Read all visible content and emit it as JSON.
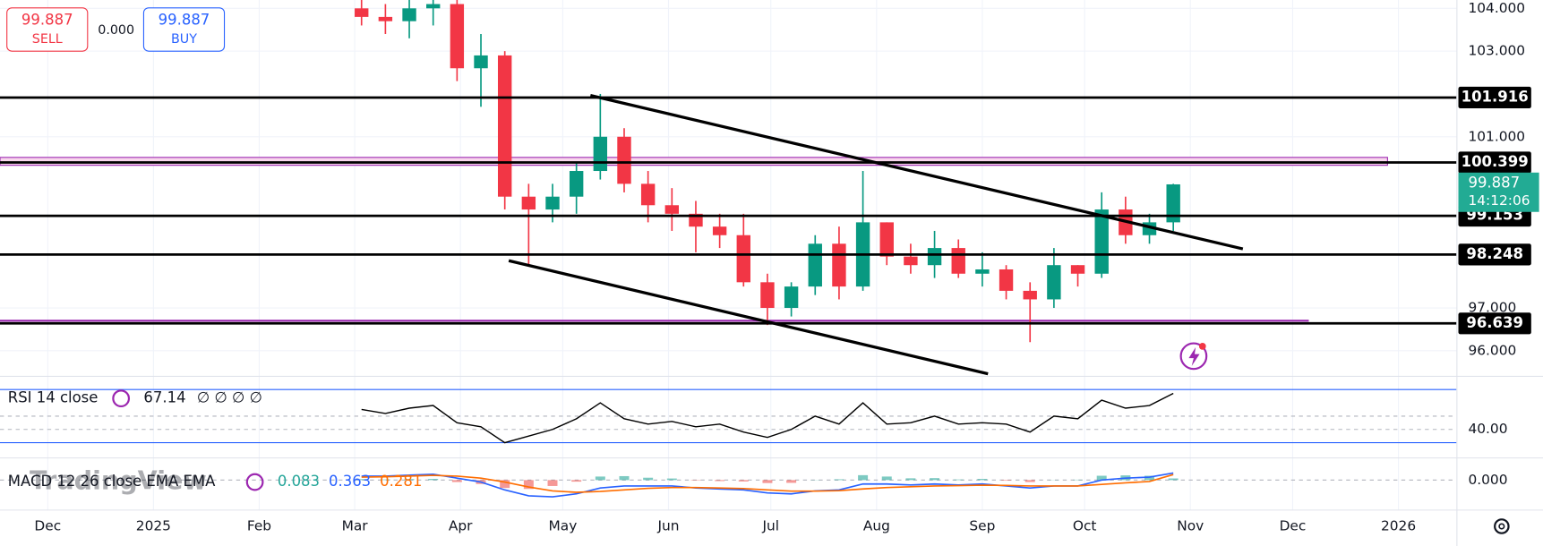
{
  "trade_panel": {
    "sell_price": "99.887",
    "sell_label": "SELL",
    "spread": "0.000",
    "buy_price": "99.887",
    "buy_label": "BUY"
  },
  "watermark": "TradingView",
  "chart_data": [
    {
      "type": "candlestick",
      "up_color": "#089981",
      "down_color": "#f23645",
      "x": [
        "2025-03-03",
        "2025-03-10",
        "2025-03-17",
        "2025-03-24",
        "2025-03-31",
        "2025-04-07",
        "2025-04-14",
        "2025-04-21",
        "2025-04-28",
        "2025-05-05",
        "2025-05-12",
        "2025-05-19",
        "2025-05-26",
        "2025-06-02",
        "2025-06-09",
        "2025-06-16",
        "2025-06-23",
        "2025-06-30",
        "2025-07-07",
        "2025-07-14",
        "2025-07-21",
        "2025-07-28",
        "2025-08-04",
        "2025-08-11",
        "2025-08-18",
        "2025-08-25",
        "2025-09-01",
        "2025-09-08",
        "2025-09-15",
        "2025-09-22",
        "2025-09-29",
        "2025-10-06",
        "2025-10-13",
        "2025-10-20",
        "2025-10-27"
      ],
      "open": [
        104.0,
        103.8,
        103.7,
        104.0,
        104.1,
        102.6,
        102.9,
        99.6,
        99.3,
        99.6,
        100.2,
        101.0,
        99.9,
        99.4,
        99.2,
        98.9,
        98.7,
        97.6,
        97.0,
        97.5,
        98.5,
        97.5,
        99.0,
        98.2,
        98.0,
        98.4,
        97.8,
        97.9,
        97.4,
        97.2,
        98.0,
        97.8,
        99.3,
        98.7,
        99.0
      ],
      "high": [
        104.3,
        104.1,
        104.2,
        104.3,
        104.3,
        103.4,
        103.0,
        99.9,
        99.9,
        100.4,
        102.0,
        101.2,
        100.2,
        99.8,
        99.5,
        99.2,
        99.2,
        97.8,
        97.6,
        98.7,
        98.9,
        100.2,
        99.0,
        98.5,
        98.8,
        98.6,
        98.3,
        98.0,
        97.6,
        98.4,
        98.0,
        99.7,
        99.6,
        99.2,
        99.9
      ],
      "low": [
        103.6,
        103.4,
        103.3,
        103.6,
        102.3,
        101.7,
        99.3,
        98.0,
        99.0,
        99.2,
        100.0,
        99.7,
        99.0,
        98.8,
        98.3,
        98.4,
        97.5,
        96.6,
        96.8,
        97.3,
        97.2,
        97.4,
        98.0,
        97.8,
        97.7,
        97.7,
        97.5,
        97.2,
        96.2,
        97.0,
        97.5,
        97.7,
        98.5,
        98.5,
        98.8
      ],
      "close": [
        103.8,
        103.7,
        104.0,
        104.1,
        102.6,
        102.9,
        99.6,
        99.3,
        99.6,
        100.2,
        101.0,
        99.9,
        99.4,
        99.2,
        98.9,
        98.7,
        97.6,
        97.0,
        97.5,
        98.5,
        97.5,
        99.0,
        98.2,
        98.0,
        98.4,
        97.8,
        97.9,
        97.4,
        97.2,
        98.0,
        97.8,
        99.3,
        98.7,
        99.0,
        99.887
      ],
      "ylim": [
        95.414,
        104.195
      ],
      "yticks": [
        {
          "value": 104,
          "label": "104.000"
        },
        {
          "value": 103,
          "label": "103.000"
        },
        {
          "value": 101,
          "label": "101.000"
        },
        {
          "value": 97,
          "label": "97.000"
        },
        {
          "value": 96,
          "label": "96.000"
        }
      ],
      "xlim": [
        "2024-11-17",
        "2026-01-18"
      ],
      "xticks": [
        {
          "value": "2024-12-01",
          "label": "Dec"
        },
        {
          "value": "2025-01-01",
          "label": "2025"
        },
        {
          "value": "2025-02-01",
          "label": "Feb"
        },
        {
          "value": "2025-03-01",
          "label": "Mar"
        },
        {
          "value": "2025-04-01",
          "label": "Apr"
        },
        {
          "value": "2025-05-01",
          "label": "May"
        },
        {
          "value": "2025-06-01",
          "label": "Jun"
        },
        {
          "value": "2025-07-01",
          "label": "Jul"
        },
        {
          "value": "2025-08-01",
          "label": "Aug"
        },
        {
          "value": "2025-09-01",
          "label": "Sep"
        },
        {
          "value": "2025-10-01",
          "label": "Oct"
        },
        {
          "value": "2025-11-01",
          "label": "Nov"
        },
        {
          "value": "2025-12-01",
          "label": "Dec"
        },
        {
          "value": "2026-01-01",
          "label": "2026"
        }
      ],
      "levels": [
        101.916,
        100.399,
        99.153,
        98.248,
        96.639
      ],
      "last_price": 99.887,
      "countdown": "14:12:06",
      "last_color": "#22ab94"
    },
    {
      "type": "line",
      "name": "RSI 14 close",
      "legend_extra": "∅ ∅ ∅ ∅",
      "ylim": [
        18.9,
        79.6
      ],
      "yticks": [
        {
          "value": 40,
          "label": "40.00"
        }
      ],
      "bands": [
        70,
        30
      ],
      "midline": 50,
      "series": [
        {
          "name": "RSI",
          "color": "#000000",
          "values": [
            55,
            52,
            56,
            58,
            45,
            42,
            30,
            35,
            40,
            48,
            60,
            48,
            44,
            46,
            42,
            44,
            38,
            34,
            40,
            50,
            44,
            60,
            44,
            45,
            50,
            44,
            45,
            44,
            38,
            50,
            48,
            62,
            56,
            58,
            67.14
          ]
        }
      ]
    },
    {
      "type": "macd",
      "name": "MACD 12 26 close EMA EMA",
      "ylim": [
        -1.5,
        1.1
      ],
      "yticks": [
        {
          "value": 0,
          "label": "0.000"
        }
      ],
      "histogram": {
        "name": "Histogram",
        "up_color": "#26a69a",
        "down_color": "#ef5350",
        "values": [
          0.05,
          0.03,
          0.05,
          0.06,
          -0.1,
          -0.2,
          -0.4,
          -0.45,
          -0.3,
          -0.08,
          0.18,
          0.2,
          0.12,
          0.08,
          -0.02,
          -0.05,
          -0.07,
          -0.15,
          -0.14,
          0.01,
          0.04,
          0.25,
          0.18,
          0.09,
          0.1,
          0.03,
          0.06,
          -0.03,
          -0.1,
          0.01,
          0.02,
          0.22,
          0.24,
          0.22,
          0.083
        ]
      },
      "series": [
        {
          "name": "MACD",
          "color": "#2962ff",
          "values": [
            0.2,
            0.2,
            0.25,
            0.3,
            0.1,
            -0.1,
            -0.5,
            -0.8,
            -0.85,
            -0.7,
            -0.4,
            -0.3,
            -0.3,
            -0.3,
            -0.4,
            -0.45,
            -0.5,
            -0.65,
            -0.7,
            -0.55,
            -0.5,
            -0.2,
            -0.2,
            -0.25,
            -0.2,
            -0.25,
            -0.2,
            -0.3,
            -0.4,
            -0.3,
            -0.3,
            0.0,
            0.1,
            0.15,
            0.363
          ]
        },
        {
          "name": "Signal",
          "color": "#ff6d00",
          "values": [
            0.15,
            0.17,
            0.2,
            0.24,
            0.2,
            0.1,
            -0.1,
            -0.35,
            -0.55,
            -0.62,
            -0.58,
            -0.5,
            -0.42,
            -0.38,
            -0.38,
            -0.4,
            -0.43,
            -0.5,
            -0.56,
            -0.56,
            -0.54,
            -0.45,
            -0.38,
            -0.34,
            -0.3,
            -0.28,
            -0.26,
            -0.27,
            -0.3,
            -0.3,
            -0.3,
            -0.22,
            -0.14,
            -0.07,
            0.281
          ]
        }
      ]
    }
  ]
}
